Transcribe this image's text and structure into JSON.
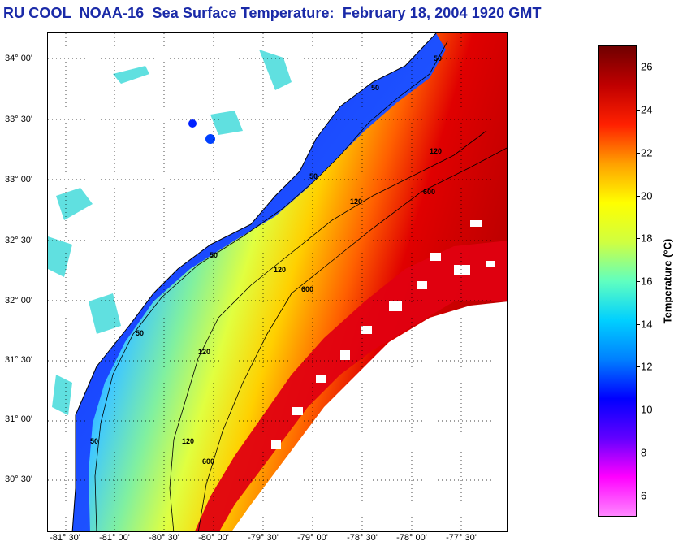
{
  "title": "RU COOL  NOAA-16  Sea Surface Temperature:  February 18, 2004 1920 GMT",
  "map": {
    "lat_labels": [
      "34° 00'",
      "33° 30'",
      "33° 00'",
      "32° 30'",
      "32° 00'",
      "31° 30'",
      "31° 00'",
      "30° 30'"
    ],
    "lon_labels": [
      "-81° 30'",
      "-81° 00'",
      "-80° 30'",
      "-80° 00'",
      "-79° 30'",
      "-79° 00'",
      "-78° 30'",
      "-78° 00'",
      "-77° 30'"
    ],
    "contour_labels": [
      "50",
      "50",
      "50",
      "50",
      "50",
      "50",
      "120",
      "120",
      "120",
      "120",
      "120",
      "600",
      "600",
      "600"
    ],
    "colors": {
      "land": "#ffffff",
      "coast_line": "#000000",
      "cloud_mask": "#ffffff"
    }
  },
  "colorbar": {
    "label": "Temperature (°C)",
    "ticks": [
      "26",
      "24",
      "22",
      "20",
      "18",
      "16",
      "14",
      "12",
      "10",
      "8",
      "6"
    ],
    "tick_values": [
      26,
      24,
      22,
      20,
      18,
      16,
      14,
      12,
      10,
      8,
      6
    ],
    "range": [
      5,
      27
    ],
    "colors": [
      "#ff88ff",
      "#ff00ff",
      "#6000ff",
      "#0000ff",
      "#0080ff",
      "#00d0ff",
      "#60ffc0",
      "#d0ff40",
      "#ffff00",
      "#ffa000",
      "#ff2000",
      "#c00000",
      "#700000"
    ]
  }
}
